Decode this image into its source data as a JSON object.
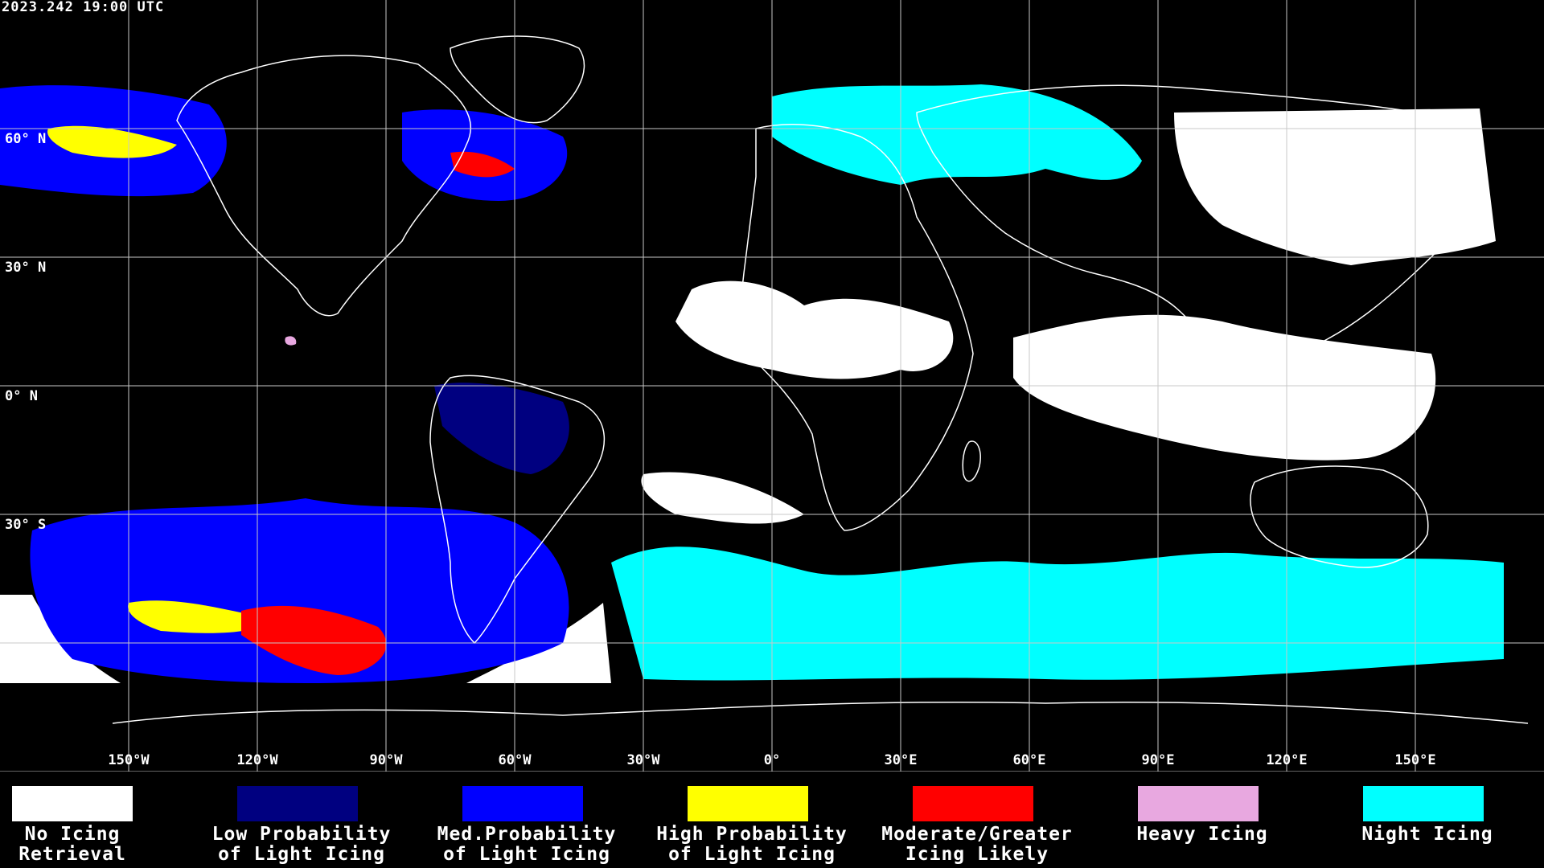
{
  "timestamp": "2023.242 19:00 UTC",
  "map": {
    "grid_color": "#c8c8c8",
    "coastline_color": "#ffffff",
    "latitude_labels": [
      "60° N",
      "30° N",
      "0° N",
      "30° S"
    ],
    "longitude_labels": [
      "150°W",
      "120°W",
      "90°W",
      "60°W",
      "30°W",
      "0°",
      "30°E",
      "60°E",
      "90°E",
      "120°E",
      "150°E"
    ]
  },
  "legend": {
    "items": [
      {
        "label": "No Icing\nRetrieval",
        "color": "#ffffff"
      },
      {
        "label": "Low Probability\nof Light Icing",
        "color": "#000080"
      },
      {
        "label": "Med.Probability\nof Light Icing",
        "color": "#0000ff"
      },
      {
        "label": "High Probability\nof Light Icing",
        "color": "#ffff00"
      },
      {
        "label": "Moderate/Greater\nIcing Likely",
        "color": "#ff0000"
      },
      {
        "label": "Heavy Icing",
        "color": "#e8a8e0"
      },
      {
        "label": "Night Icing",
        "color": "#00ffff"
      }
    ]
  }
}
